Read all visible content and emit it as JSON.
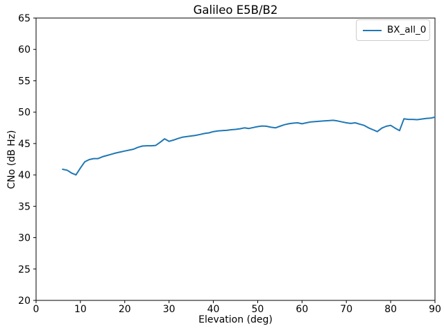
{
  "figure": {
    "background": "#ffffff",
    "text_color": "#000000",
    "spine_color": "#000000",
    "legend_border_color": "#cccccc"
  },
  "chart_data": {
    "type": "line",
    "title": "Galileo E5B/B2",
    "xlabel": "Elevation (deg)",
    "ylabel": "CNo (dB Hz)",
    "xlim": [
      0,
      90
    ],
    "ylim": [
      20,
      65
    ],
    "xticks": [
      0,
      10,
      20,
      30,
      40,
      50,
      60,
      70,
      80,
      90
    ],
    "yticks": [
      20,
      25,
      30,
      35,
      40,
      45,
      50,
      55,
      60,
      65
    ],
    "grid": false,
    "legend_position": "upper right",
    "series": [
      {
        "name": "BX_all_0",
        "color": "#1f77b4",
        "x": [
          6,
          7,
          8,
          9,
          10,
          11,
          12,
          13,
          14,
          15,
          16,
          17,
          18,
          19,
          20,
          21,
          22,
          23,
          24,
          25,
          26,
          27,
          28,
          29,
          30,
          31,
          32,
          33,
          34,
          35,
          36,
          37,
          38,
          39,
          40,
          41,
          42,
          43,
          44,
          45,
          46,
          47,
          48,
          49,
          50,
          51,
          52,
          53,
          54,
          55,
          56,
          57,
          58,
          59,
          60,
          61,
          62,
          63,
          64,
          65,
          66,
          67,
          68,
          69,
          70,
          71,
          72,
          73,
          74,
          75,
          76,
          77,
          78,
          79,
          80,
          81,
          82,
          83,
          84,
          85,
          86,
          87,
          88,
          89,
          90
        ],
        "y": [
          40.9,
          40.75,
          40.3,
          40.0,
          41.1,
          42.1,
          42.45,
          42.6,
          42.6,
          42.9,
          43.1,
          43.3,
          43.5,
          43.65,
          43.8,
          43.95,
          44.1,
          44.4,
          44.6,
          44.65,
          44.65,
          44.7,
          45.2,
          45.75,
          45.35,
          45.55,
          45.8,
          46.0,
          46.1,
          46.2,
          46.3,
          46.45,
          46.6,
          46.7,
          46.9,
          47.0,
          47.05,
          47.1,
          47.2,
          47.25,
          47.35,
          47.5,
          47.4,
          47.55,
          47.7,
          47.8,
          47.75,
          47.6,
          47.5,
          47.75,
          48.0,
          48.15,
          48.25,
          48.3,
          48.15,
          48.3,
          48.45,
          48.5,
          48.55,
          48.6,
          48.65,
          48.7,
          48.6,
          48.45,
          48.3,
          48.2,
          48.3,
          48.1,
          47.9,
          47.5,
          47.2,
          46.9,
          47.45,
          47.75,
          47.9,
          47.45,
          47.05,
          48.95,
          48.85,
          48.85,
          48.8,
          48.9,
          49.0,
          49.05,
          49.2
        ]
      }
    ]
  }
}
